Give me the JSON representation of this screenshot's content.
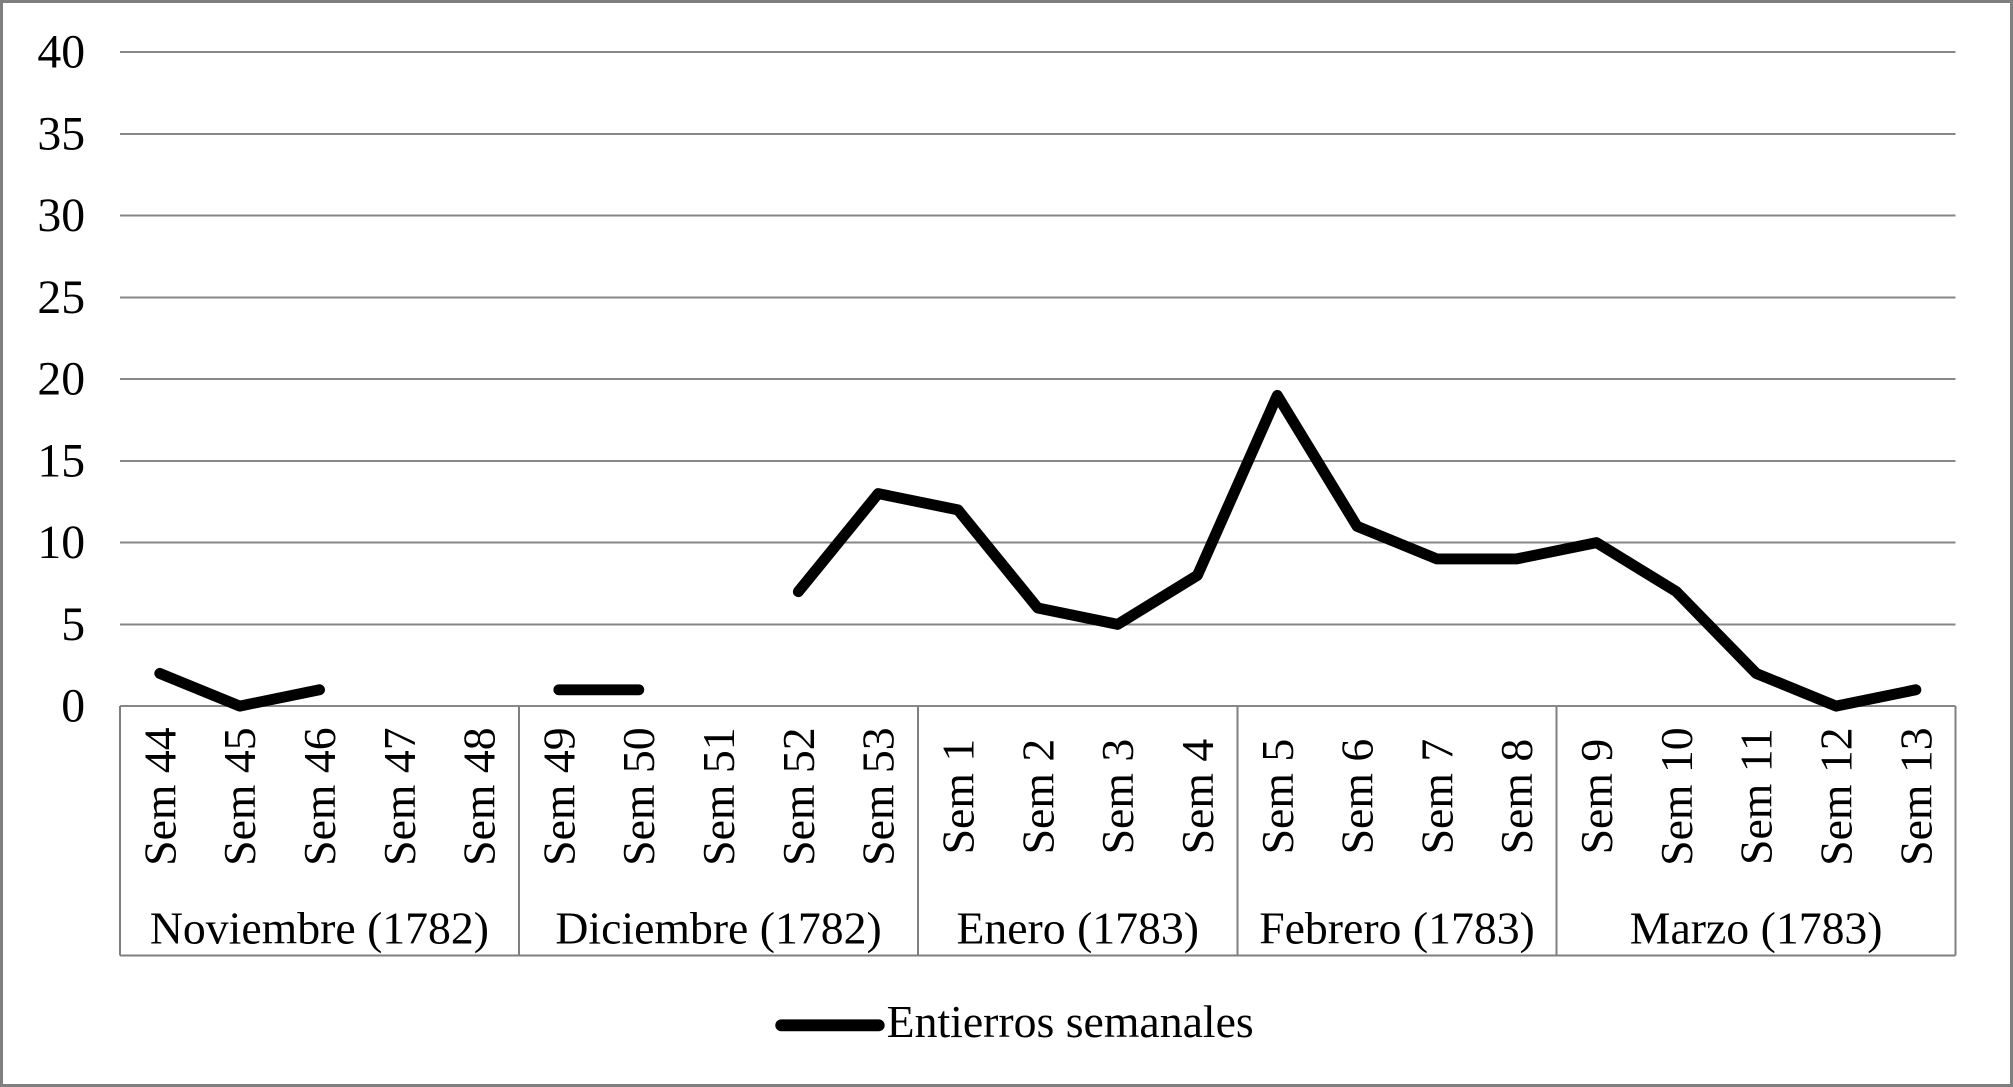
{
  "figure": {
    "background": "#ffffff",
    "border_color": "#7f7f7f",
    "grid_color": "#878787",
    "axis_box_color": "#7f7f7f",
    "line_color": "#000000",
    "text_color": "#000000"
  },
  "legend": {
    "label": "Entierros semanales",
    "position": "bottom-center"
  },
  "chart_data": {
    "type": "line",
    "title": "",
    "xlabel": "",
    "ylabel": "",
    "ylim": [
      0,
      40
    ],
    "ytick_interval": 5,
    "yticks": [
      0,
      5,
      10,
      15,
      20,
      25,
      30,
      35,
      40
    ],
    "grid": true,
    "legend_position": "bottom",
    "categories": [
      "Sem 44",
      "Sem 45",
      "Sem 46",
      "Sem 47",
      "Sem 48",
      "Sem 49",
      "Sem 50",
      "Sem 51",
      "Sem 52",
      "Sem 53",
      "Sem 1",
      "Sem 2",
      "Sem 3",
      "Sem 4",
      "Sem 5",
      "Sem 6",
      "Sem 7",
      "Sem 8",
      "Sem 9",
      "Sem 10",
      "Sem 11",
      "Sem 12",
      "Sem 13"
    ],
    "month_groups": [
      {
        "label": "Noviembre (1782)",
        "weeks": [
          "Sem 44",
          "Sem 45",
          "Sem 46",
          "Sem 47",
          "Sem 48"
        ]
      },
      {
        "label": "Diciembre (1782)",
        "weeks": [
          "Sem 49",
          "Sem 50",
          "Sem 51",
          "Sem 52",
          "Sem 53"
        ]
      },
      {
        "label": "Enero (1783)",
        "weeks": [
          "Sem 1",
          "Sem 2",
          "Sem 3",
          "Sem 4"
        ]
      },
      {
        "label": "Febrero (1783)",
        "weeks": [
          "Sem 5",
          "Sem 6",
          "Sem 7",
          "Sem 8"
        ]
      },
      {
        "label": "Marzo (1783)",
        "weeks": [
          "Sem 9",
          "Sem 10",
          "Sem 11",
          "Sem 12",
          "Sem 13"
        ]
      }
    ],
    "series": [
      {
        "name": "Entierros semanales",
        "values": [
          2,
          0,
          1,
          null,
          null,
          1,
          1,
          null,
          7,
          13,
          12,
          6,
          5,
          8,
          19,
          11,
          9,
          9,
          10,
          7,
          2,
          0,
          1
        ]
      }
    ]
  }
}
